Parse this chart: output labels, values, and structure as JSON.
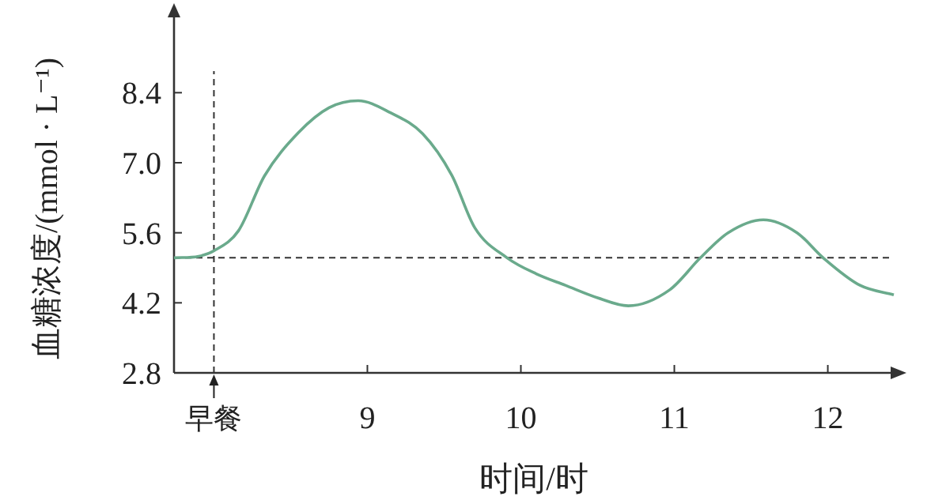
{
  "chart_data": {
    "type": "line",
    "xlabel": "时间/时",
    "ylabel": "血糖浓度/(mmol · L⁻¹)",
    "xlim": [
      7.74,
      12.43
    ],
    "ylim": [
      2.8,
      10.0
    ],
    "xticks": [
      {
        "value": 8,
        "label": "早餐"
      },
      9,
      10,
      11,
      12
    ],
    "yticks": [
      2.8,
      4.2,
      5.6,
      {
        "value": 7.0,
        "label": "7.0"
      },
      8.4
    ],
    "grid": false,
    "marker": "none",
    "line_style": "solid",
    "ref_lines": [
      {
        "axis": "x",
        "value": 8,
        "label": null,
        "line_style": "dashed",
        "color": "#333333"
      },
      {
        "axis": "y",
        "value": 5.1,
        "label": null,
        "line_style": "dashed",
        "color": "#333333"
      }
    ],
    "series": [
      {
        "color": "#6aaa8c",
        "x": [
          7.74,
          7.9,
          8.0,
          8.16,
          8.33,
          8.55,
          8.75,
          8.94,
          9.15,
          9.36,
          9.55,
          9.7,
          9.91,
          10.1,
          10.29,
          10.5,
          10.7,
          10.97,
          11.17,
          11.35,
          11.58,
          11.8,
          11.97,
          12.21,
          12.43
        ],
        "values": [
          5.1,
          5.13,
          5.24,
          5.64,
          6.74,
          7.6,
          8.1,
          8.24,
          8.0,
          7.58,
          6.75,
          5.7,
          5.1,
          4.78,
          4.55,
          4.3,
          4.14,
          4.46,
          5.1,
          5.6,
          5.86,
          5.6,
          5.1,
          4.55,
          4.36
        ]
      }
    ]
  }
}
